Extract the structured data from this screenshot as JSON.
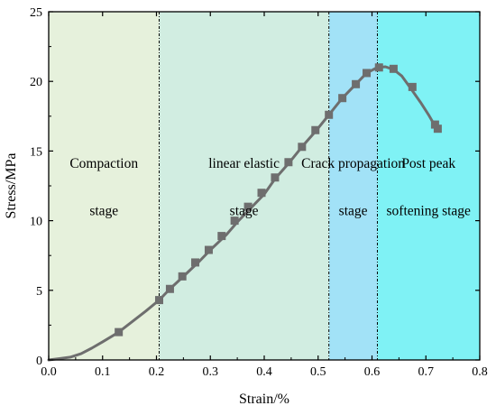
{
  "chart_data": {
    "type": "line",
    "xlabel": "Strain/%",
    "ylabel": "Stress/MPa",
    "xlim": [
      0.0,
      0.8
    ],
    "ylim": [
      0,
      25
    ],
    "x_ticks": [
      "0.0",
      "0.1",
      "0.2",
      "0.3",
      "0.4",
      "0.5",
      "0.6",
      "0.7",
      "0.8"
    ],
    "y_ticks": [
      "0",
      "5",
      "10",
      "15",
      "20",
      "25"
    ],
    "grid": false,
    "line_color": "#6e6e6e",
    "marker_color": "#6e6e6e",
    "regions": [
      {
        "x_start": 0.0,
        "x_end": 0.205,
        "color": "#e6f1dc",
        "label_lines": [
          "Compaction",
          "stage"
        ],
        "label_y": [
          13.8,
          10.4
        ]
      },
      {
        "x_start": 0.205,
        "x_end": 0.52,
        "color": "#d1ede1",
        "label_lines": [
          "linear elastic",
          "stage"
        ],
        "label_y": [
          13.8,
          10.4
        ]
      },
      {
        "x_start": 0.52,
        "x_end": 0.61,
        "color": "#a2e2f7",
        "label_lines": [
          "Crack propagation",
          "stage"
        ],
        "label_y": [
          13.8,
          10.4
        ]
      },
      {
        "x_start": 0.61,
        "x_end": 0.8,
        "color": "#7ff2f5",
        "label_lines": [
          "Post peak",
          "softening stage"
        ],
        "label_y": [
          13.8,
          10.4
        ]
      }
    ],
    "boundaries": [
      0.205,
      0.52,
      0.61
    ],
    "series": [
      {
        "curve_x": [
          0.0,
          0.02,
          0.04,
          0.06,
          0.08,
          0.1,
          0.13,
          0.16,
          0.18,
          0.205,
          0.225,
          0.25,
          0.28,
          0.3,
          0.33,
          0.35,
          0.375,
          0.4,
          0.42,
          0.445,
          0.47,
          0.495,
          0.52,
          0.545,
          0.57,
          0.59,
          0.61,
          0.625,
          0.64,
          0.655,
          0.67,
          0.69,
          0.705,
          0.72
        ],
        "curve_y": [
          0.0,
          0.1,
          0.2,
          0.45,
          0.85,
          1.3,
          2.0,
          2.9,
          3.5,
          4.3,
          5.1,
          6.0,
          7.1,
          7.9,
          9.0,
          9.9,
          10.9,
          11.9,
          13.0,
          14.1,
          15.3,
          16.4,
          17.6,
          18.8,
          19.8,
          20.6,
          21.0,
          21.05,
          20.85,
          20.4,
          19.6,
          18.5,
          17.6,
          16.6
        ],
        "marker_x": [
          0.13,
          0.205,
          0.225,
          0.248,
          0.272,
          0.297,
          0.321,
          0.345,
          0.37,
          0.395,
          0.42,
          0.445,
          0.47,
          0.495,
          0.52,
          0.545,
          0.57,
          0.59,
          0.613,
          0.64,
          0.675,
          0.717,
          0.722
        ],
        "marker_y": [
          2.0,
          4.3,
          5.1,
          6.0,
          7.0,
          7.9,
          8.9,
          10.0,
          11.0,
          12.0,
          13.1,
          14.2,
          15.3,
          16.5,
          17.6,
          18.8,
          19.8,
          20.6,
          21.0,
          20.9,
          19.6,
          16.9,
          16.6
        ]
      }
    ]
  }
}
